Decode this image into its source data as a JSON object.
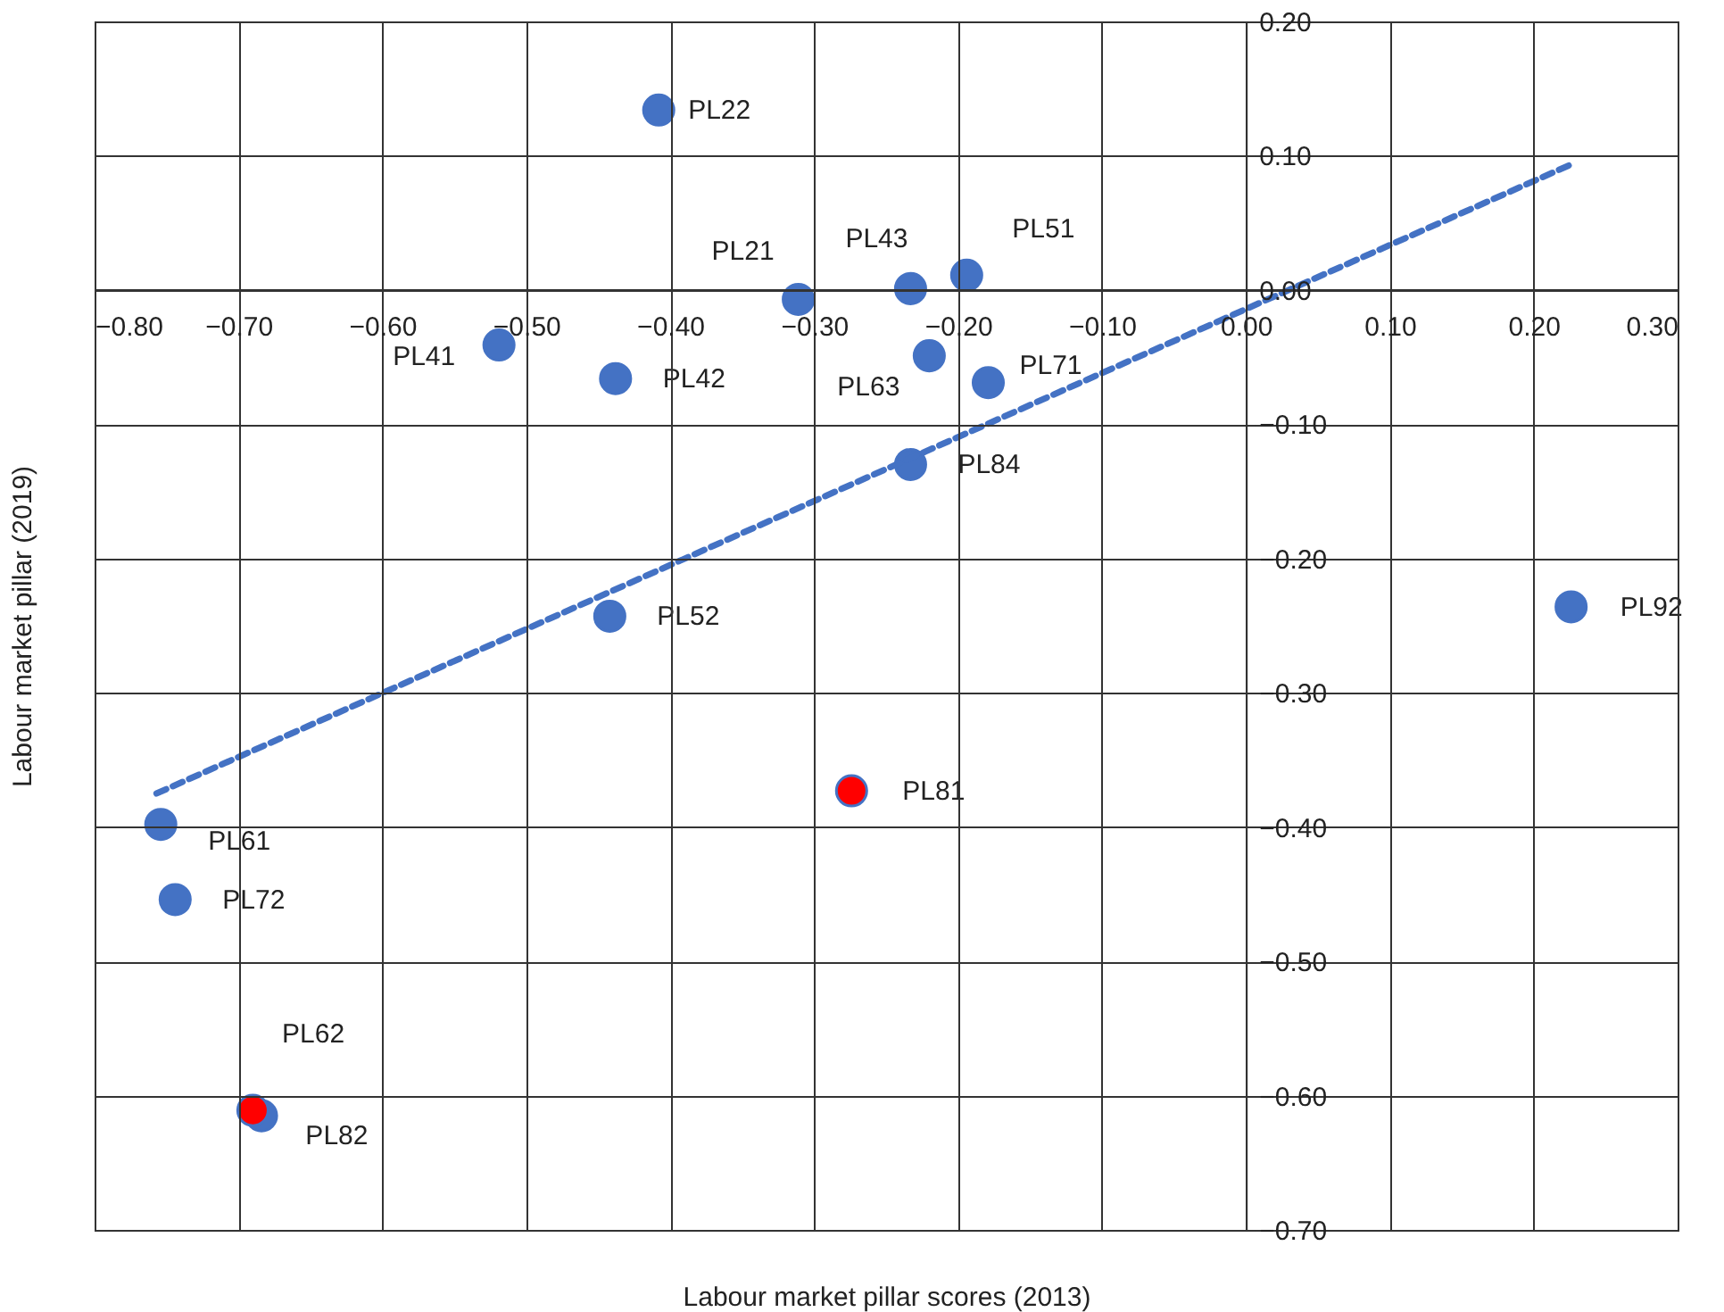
{
  "chart_data": {
    "type": "scatter",
    "xlabel": "Labour market pillar scores (2013)",
    "ylabel": "Labour market pillar (2019)",
    "xlim": [
      -0.8,
      0.3
    ],
    "xticks": [
      {
        "value": -0.8,
        "label": "−0.80"
      },
      {
        "value": -0.7,
        "label": "−0.70"
      },
      {
        "value": -0.6,
        "label": "−0.60"
      },
      {
        "value": -0.5,
        "label": "−0.50"
      },
      {
        "value": -0.4,
        "label": "−0.40"
      },
      {
        "value": -0.3,
        "label": "−0.30"
      },
      {
        "value": -0.2,
        "label": "−0.20"
      },
      {
        "value": -0.1,
        "label": "−0.10"
      },
      {
        "value": 0,
        "label": "0.00"
      },
      {
        "value": 0.1,
        "label": "0.10"
      },
      {
        "value": 0.2,
        "label": "0.20"
      },
      {
        "value": 0.3,
        "label": "0.30"
      }
    ],
    "ylim": [
      -0.7,
      0.2
    ],
    "yticks": [
      {
        "value": -0.7,
        "label": "−0.70"
      },
      {
        "value": -0.6,
        "label": "−0.60"
      },
      {
        "value": -0.5,
        "label": "−0.50"
      },
      {
        "value": -0.4,
        "label": "−0.40"
      },
      {
        "value": -0.3,
        "label": "−0.30"
      },
      {
        "value": -0.2,
        "label": "−0.20"
      },
      {
        "value": -0.1,
        "label": "−0.10"
      },
      {
        "value": 0,
        "label": "0.00"
      },
      {
        "value": 0.1,
        "label": "0.10"
      },
      {
        "value": 0.2,
        "label": "0.20"
      }
    ],
    "grid": true,
    "series": [
      {
        "marker": "circle",
        "color": "#4472c4",
        "x": [
          -0.408,
          -0.311,
          -0.233,
          -0.194,
          -0.519,
          -0.438,
          -0.22,
          -0.179,
          -0.233,
          -0.442,
          0.226,
          -0.274,
          -0.754,
          -0.744,
          -0.684,
          -0.69
        ],
        "values": [
          0.134,
          -0.007,
          0.001,
          0.011,
          -0.041,
          -0.066,
          -0.049,
          -0.069,
          -0.13,
          -0.243,
          -0.236,
          -0.373,
          -0.398,
          -0.454,
          -0.615,
          -0.611
        ],
        "colors": [
          "#4472c4",
          "#4472c4",
          "#4472c4",
          "#4472c4",
          "#4472c4",
          "#4472c4",
          "#4472c4",
          "#4472c4",
          "#4472c4",
          "#4472c4",
          "#4472c4",
          "#ff0000",
          "#4472c4",
          "#4472c4",
          "#4472c4",
          "#ff0000"
        ]
      },
      {
        "type": "line",
        "color": "#4472c4",
        "line_style": "dashed",
        "x": [
          -0.757,
          0.225
        ],
        "values": [
          -0.375,
          0.093
        ]
      }
    ],
    "annotations": [
      {
        "text": "PL22",
        "x": -0.408,
        "y": 0.134
      },
      {
        "text": "PL21",
        "x": -0.311,
        "y": -0.007
      },
      {
        "text": "PL43",
        "x": -0.233,
        "y": 0.001
      },
      {
        "text": "PL51",
        "x": -0.194,
        "y": 0.011
      },
      {
        "text": "PL41",
        "x": -0.519,
        "y": -0.041
      },
      {
        "text": "PL42",
        "x": -0.438,
        "y": -0.066
      },
      {
        "text": "PL63",
        "x": -0.22,
        "y": -0.049
      },
      {
        "text": "PL71",
        "x": -0.179,
        "y": -0.069
      },
      {
        "text": "PL84",
        "x": -0.233,
        "y": -0.13
      },
      {
        "text": "PL52",
        "x": -0.442,
        "y": -0.243
      },
      {
        "text": "PL92",
        "x": 0.226,
        "y": -0.236
      },
      {
        "text": "PL81",
        "x": -0.274,
        "y": -0.373
      },
      {
        "text": "PL61",
        "x": -0.754,
        "y": -0.398
      },
      {
        "text": "PL72",
        "x": -0.744,
        "y": -0.454
      },
      {
        "text": "PL62",
        "x": -0.684,
        "y": -0.615
      },
      {
        "text": "PL82",
        "x": -0.69,
        "y": -0.611
      }
    ]
  }
}
